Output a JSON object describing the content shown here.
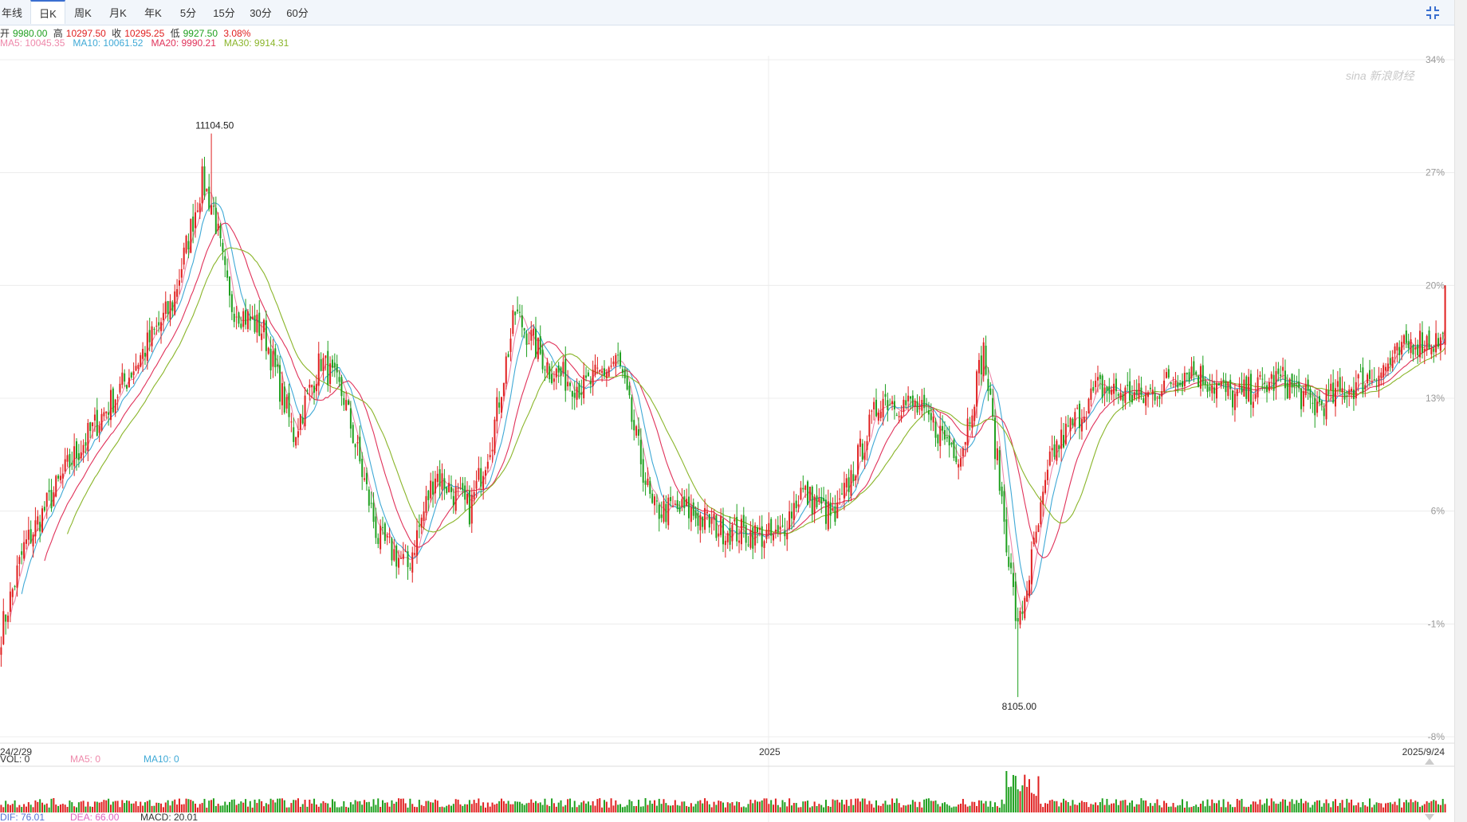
{
  "tabs": [
    {
      "label": "年线",
      "active": false
    },
    {
      "label": "日K",
      "active": true
    },
    {
      "label": "周K",
      "active": false
    },
    {
      "label": "月K",
      "active": false
    },
    {
      "label": "年K",
      "active": false
    },
    {
      "label": "5分",
      "active": false
    },
    {
      "label": "15分",
      "active": false
    },
    {
      "label": "30分",
      "active": false
    },
    {
      "label": "60分",
      "active": false
    }
  ],
  "icons": {
    "collapse": "collapse-icon",
    "scroll_arrows": "triangle-arrow-icon"
  },
  "quote": {
    "open_label": "开",
    "open": "9980.00",
    "high_label": "高",
    "high": "10297.50",
    "close_label": "收",
    "close": "10295.25",
    "low_label": "低",
    "low": "9927.50",
    "change": "3.08%"
  },
  "ma_legend": [
    {
      "label": "MA5:",
      "value": "10045.35",
      "color": "#ee88aa"
    },
    {
      "label": "MA10:",
      "value": "10061.52",
      "color": "#3fa9d6"
    },
    {
      "label": "MA20:",
      "value": "9990.21",
      "color": "#e0325a"
    },
    {
      "label": "MA30:",
      "value": "9914.31",
      "color": "#8ab52a"
    }
  ],
  "volume_legend": [
    {
      "label": "VOL:",
      "value": "0",
      "color": "#333333"
    },
    {
      "label": "MA5:",
      "value": "0",
      "color": "#ee88aa"
    },
    {
      "label": "MA10:",
      "value": "0",
      "color": "#3fa9d6"
    }
  ],
  "macd_legend": [
    {
      "label": "DIF:",
      "value": "76.01",
      "color": "#5470d6"
    },
    {
      "label": "DEA:",
      "value": "66.00",
      "color": "#e062c0"
    },
    {
      "label": "MACD:",
      "value": "20.01",
      "color": "#333333"
    }
  ],
  "watermark": "sina 新浪财经",
  "colors": {
    "up": "#e02020",
    "down": "#1fa01f",
    "grid": "#ececec"
  },
  "chart_data": {
    "type": "candlestick",
    "x_start_label": "24/2/29",
    "x_mid_label": "2025",
    "x_end_label": "2025/9/24",
    "y_axis_percent_ticks": [
      "34%",
      "27%",
      "20%",
      "13%",
      "6%",
      "-1%",
      "-8%"
    ],
    "y_percent_range": [
      -8,
      34
    ],
    "price_at_zero_percent": 8580,
    "max_marker": "11104.50",
    "min_marker": "8105.00",
    "close_anchor_points": [
      [
        0,
        8450
      ],
      [
        10,
        8900
      ],
      [
        30,
        9350
      ],
      [
        55,
        9800
      ],
      [
        75,
        10200
      ],
      [
        88,
        10850
      ],
      [
        93,
        10700
      ],
      [
        100,
        10200
      ],
      [
        115,
        10050
      ],
      [
        128,
        9500
      ],
      [
        140,
        9900
      ],
      [
        150,
        9700
      ],
      [
        165,
        8950
      ],
      [
        178,
        8800
      ],
      [
        190,
        9300
      ],
      [
        205,
        9100
      ],
      [
        215,
        9500
      ],
      [
        225,
        10150
      ],
      [
        240,
        9850
      ],
      [
        255,
        9750
      ],
      [
        270,
        9900
      ],
      [
        285,
        9100
      ],
      [
        300,
        9100
      ],
      [
        315,
        9000
      ],
      [
        340,
        8950
      ],
      [
        350,
        9200
      ],
      [
        365,
        9050
      ],
      [
        385,
        9700
      ],
      [
        400,
        9650
      ],
      [
        420,
        9400
      ],
      [
        430,
        9950
      ],
      [
        445,
        8450
      ],
      [
        460,
        9400
      ],
      [
        480,
        9750
      ],
      [
        500,
        9700
      ],
      [
        520,
        9850
      ],
      [
        540,
        9700
      ],
      [
        560,
        9800
      ],
      [
        575,
        9650
      ],
      [
        590,
        9750
      ],
      [
        605,
        9850
      ],
      [
        618,
        10000
      ],
      [
        632,
        10000
      ]
    ]
  }
}
